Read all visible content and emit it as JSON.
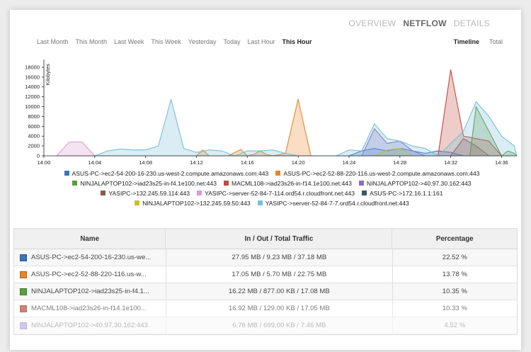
{
  "tabs": [
    {
      "label": "OVERVIEW",
      "active": false
    },
    {
      "label": "NETFLOW",
      "active": true
    },
    {
      "label": "DETAILS",
      "active": false
    }
  ],
  "ranges": [
    {
      "label": "Last Month",
      "active": false
    },
    {
      "label": "This Month",
      "active": false
    },
    {
      "label": "Last Week",
      "active": false
    },
    {
      "label": "This Week",
      "active": false
    },
    {
      "label": "Yesterday",
      "active": false
    },
    {
      "label": "Today",
      "active": false
    },
    {
      "label": "Last Hour",
      "active": false
    },
    {
      "label": "This Hour",
      "active": true
    }
  ],
  "views": [
    {
      "label": "Timeline",
      "active": true
    },
    {
      "label": "Total",
      "active": false
    }
  ],
  "chart_data": {
    "type": "area",
    "ylabel": "Kilobytes",
    "ylim": [
      0,
      19000
    ],
    "yticks": [
      0,
      2000,
      4000,
      6000,
      8000,
      10000,
      12000,
      14000,
      16000,
      18000
    ],
    "xticks": [
      {
        "label": "14:00",
        "m": 0
      },
      {
        "label": "14:04",
        "m": 4
      },
      {
        "label": "14:08",
        "m": 8
      },
      {
        "label": "14:12",
        "m": 12
      },
      {
        "label": "14:16",
        "m": 16
      },
      {
        "label": "14:20",
        "m": 20
      },
      {
        "label": "14:24",
        "m": 24
      },
      {
        "label": "14:28",
        "m": 28
      },
      {
        "label": "14:32",
        "m": 32
      },
      {
        "label": "14:36",
        "m": 36
      }
    ],
    "xlim": [
      0,
      37.2
    ],
    "series": [
      {
        "name": "ASUS-PC->ec2-54-200-16-230.us-west-2.compute.amazonaws.com:443",
        "color": "#3f72bf",
        "points": [
          [
            24,
            0
          ],
          [
            25,
            1000
          ],
          [
            26,
            1500
          ],
          [
            27,
            1000
          ],
          [
            28,
            1500
          ],
          [
            29,
            1000
          ],
          [
            30,
            500
          ],
          [
            31,
            1000
          ],
          [
            32,
            700
          ],
          [
            33,
            0
          ]
        ]
      },
      {
        "name": "ASUS-PC->ec2-52-88-220-116.us-west-2.compute.amazonaws.com:443",
        "color": "#e8862c",
        "points": [
          [
            12,
            0
          ],
          [
            12.5,
            1200
          ],
          [
            13,
            0
          ],
          [
            14.5,
            0
          ],
          [
            15.5,
            1300
          ],
          [
            16,
            0
          ],
          [
            16.5,
            300
          ],
          [
            17,
            1000
          ],
          [
            17.5,
            300
          ],
          [
            18,
            0
          ],
          [
            19,
            500
          ],
          [
            20,
            11500
          ],
          [
            21,
            0
          ]
        ]
      },
      {
        "name": "NINJALAPTOP102->iad23s25-in-f4.1e100.net:443",
        "color": "#5a9e3e",
        "points": [
          [
            33.5,
            0
          ],
          [
            34,
            10000
          ],
          [
            35,
            5000
          ],
          [
            36,
            0
          ],
          [
            36.5,
            1000
          ],
          [
            37,
            500
          ],
          [
            37.2,
            0
          ]
        ]
      },
      {
        "name": "MACML108->iad23s26-in-f14.1e100.net:443",
        "color": "#c24a3e",
        "points": [
          [
            31,
            0
          ],
          [
            32,
            17500
          ],
          [
            33,
            4000
          ],
          [
            34,
            3500
          ],
          [
            35,
            3000
          ],
          [
            36,
            0
          ]
        ]
      },
      {
        "name": "NINJALAPTOP102->40.97.30.162:443",
        "color": "#8c6cc8",
        "points": [
          [
            25,
            0
          ],
          [
            26,
            5500
          ],
          [
            27,
            2500
          ],
          [
            28,
            3000
          ],
          [
            29,
            1000
          ],
          [
            30,
            0
          ]
        ]
      },
      {
        "name": "YASIPC->132.245.59.114:443",
        "color": "#8a5a4e",
        "points": [
          [
            32,
            0
          ],
          [
            33,
            3500
          ],
          [
            34,
            2000
          ],
          [
            35,
            0
          ]
        ]
      },
      {
        "name": "YASIPC->server-52-84-7-114.ord54.r.cloudfront.net:443",
        "color": "#e09ad0",
        "points": [
          [
            1,
            0
          ],
          [
            2,
            2800
          ],
          [
            3,
            2800
          ],
          [
            4,
            0
          ]
        ]
      },
      {
        "name": "ASUS-PC->172.16.1.1:161",
        "color": "#3e5864",
        "points": []
      },
      {
        "name": "NINJALAPTOP102->132.245.59.50:443",
        "color": "#c9c02c",
        "points": [
          [
            26,
            0
          ],
          [
            27,
            1200
          ],
          [
            28,
            1500
          ],
          [
            29,
            0
          ]
        ]
      },
      {
        "name": "YASIPC->server-52-84-7-7.ord54.r.cloudfront.net:443",
        "color": "#79bfd8",
        "points": [
          [
            4,
            0
          ],
          [
            5,
            1000
          ],
          [
            6,
            1400
          ],
          [
            7,
            1200
          ],
          [
            8,
            1200
          ],
          [
            9,
            2000
          ],
          [
            10,
            11500
          ],
          [
            11,
            1500
          ],
          [
            12,
            700
          ],
          [
            13,
            1200
          ],
          [
            14,
            1000
          ],
          [
            15,
            0
          ],
          [
            16,
            1000
          ],
          [
            17,
            1000
          ],
          [
            18,
            1200
          ],
          [
            19,
            500
          ],
          [
            20,
            0
          ],
          [
            23,
            0
          ],
          [
            24,
            1200
          ],
          [
            25,
            1000
          ],
          [
            26,
            6500
          ],
          [
            27,
            3500
          ],
          [
            28,
            3000
          ],
          [
            29,
            2000
          ],
          [
            30,
            1500
          ],
          [
            31,
            0
          ],
          [
            33,
            5000
          ],
          [
            34,
            11000
          ],
          [
            35,
            8000
          ],
          [
            36,
            4000
          ],
          [
            37,
            2000
          ],
          [
            37.2,
            0
          ]
        ]
      }
    ]
  },
  "table": {
    "headers": [
      "Name",
      "In / Out / Total Traffic",
      "Percentage"
    ],
    "rows": [
      {
        "name": "ASUS-PC->ec2-54-200-16-230.us-we...",
        "color": "#3f72bf",
        "traffic": "27.95 MB / 9.23 MB / 37.18 MB",
        "pct": "22.52 %"
      },
      {
        "name": "ASUS-PC->ec2-52-88-220-116.us-w...",
        "color": "#e8862c",
        "traffic": "17.05 MB / 5.70 MB / 22.75 MB",
        "pct": "13.78 %"
      },
      {
        "name": "NINJALAPTOP102->iad23s25-in-f4.1...",
        "color": "#5a9e3e",
        "traffic": "16.22 MB / 877.00 KB / 17.08 MB",
        "pct": "10.35 %"
      },
      {
        "name": "MACML108->iad23s26-in-f14.1e100...",
        "color": "#c24a3e",
        "traffic": "16.92 MB / 129.00 KB / 17.05 MB",
        "pct": "10.33 %"
      },
      {
        "name": "NINJALAPTOP102->40.97.30.162:443",
        "color": "#8c6cc8",
        "traffic": "6.78 MB / 699.00 KB / 7.46 MB",
        "pct": "4.52 %"
      }
    ]
  }
}
